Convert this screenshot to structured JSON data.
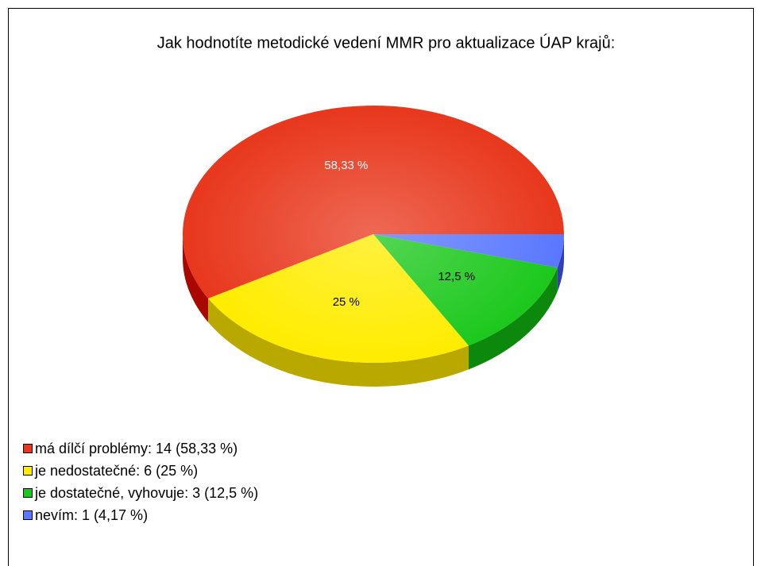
{
  "chart_data": {
    "type": "pie3d",
    "title": "Jak hodnotíte metodické vedení MMR pro aktualizace ÚAP krajů:",
    "values": [
      58.33,
      25,
      12.5,
      4.17
    ],
    "value_labels": [
      "58,33 %",
      "25 %",
      "12,5 %",
      null
    ],
    "legend_labels": [
      "má dílčí problémy: 14 (58,33 %)",
      "je nedostatečné: 6 (25 %)",
      "je dostatečné, vyhovuje: 3 (12,5 %)",
      "nevím: 1 (4,17 %)"
    ],
    "colors": [
      "#e8371c",
      "#ffec00",
      "#1cc81c",
      "#5a78ff"
    ],
    "side_colors": [
      "#a80800",
      "#b8a800",
      "#0c880c",
      "#3040b0"
    ],
    "label_colors": [
      "#ffffff",
      "#000000",
      "#000000",
      "#000000"
    ]
  }
}
